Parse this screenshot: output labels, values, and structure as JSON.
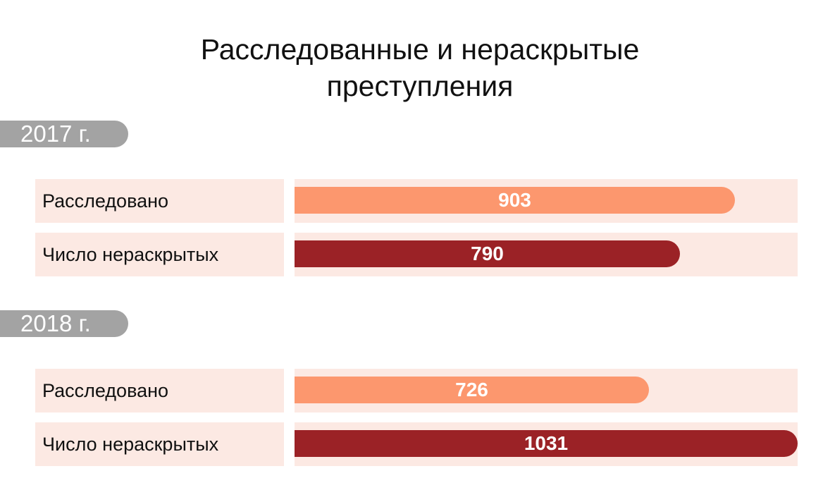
{
  "title": {
    "line1": "Расследованные и нераскрытые",
    "line2": "преступления"
  },
  "colors": {
    "investigated": "#fc976e",
    "unsolved": "#9b2226",
    "row_background": "#fce9e3",
    "year_pill": "#a3a3a3"
  },
  "chart_data": {
    "type": "bar",
    "orientation": "horizontal",
    "title": "Расследованные и нераскрытые преступления",
    "xlim": [
      0,
      1031
    ],
    "groups": [
      {
        "label": "2017 г.",
        "bars": [
          {
            "label": "Расследовано",
            "value": 903
          },
          {
            "label": "Число нераскрытых",
            "value": 790
          }
        ]
      },
      {
        "label": "2018 г.",
        "bars": [
          {
            "label": "Расследовано",
            "value": 726
          },
          {
            "label": "Число нераскрытых",
            "value": 1031
          }
        ]
      }
    ]
  }
}
